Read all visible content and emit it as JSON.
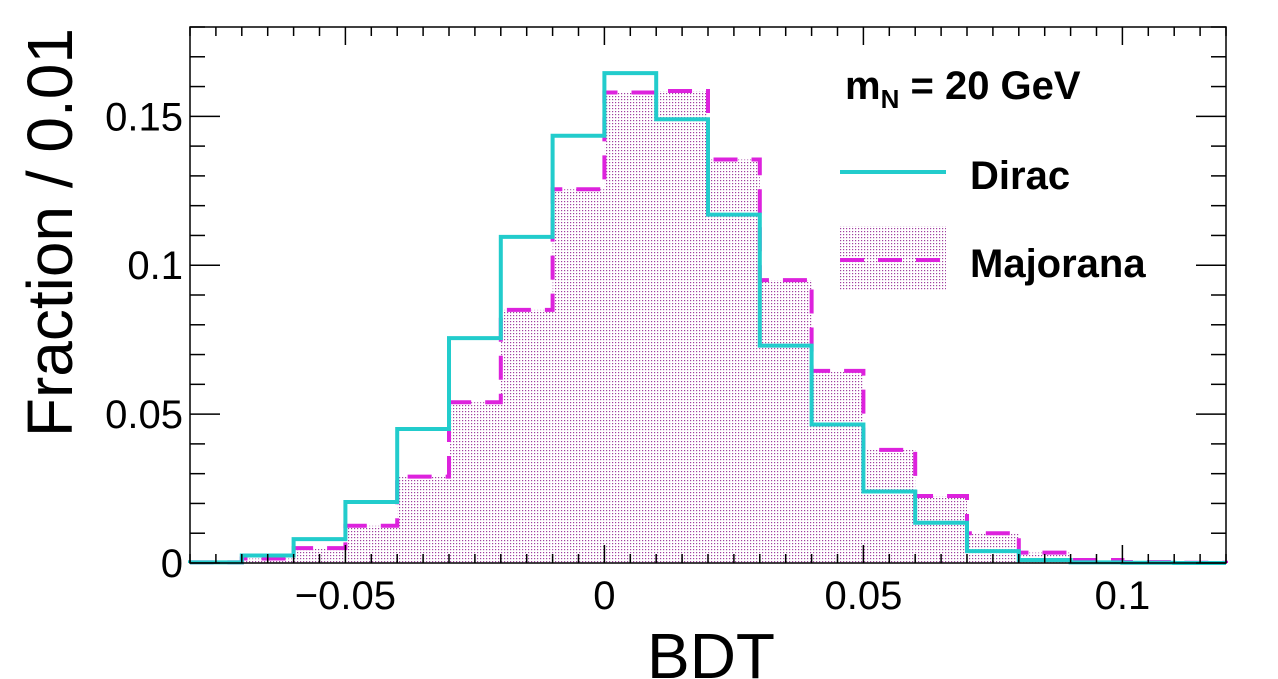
{
  "chart_data": {
    "type": "histogram",
    "xlabel": "BDT",
    "ylabel": "Fraction / 0.01",
    "xlim": [
      -0.08,
      0.12
    ],
    "ylim": [
      0,
      0.18
    ],
    "x_ticks": [
      -0.05,
      0,
      0.05,
      0.1
    ],
    "x_tick_labels": [
      "−0.05",
      "0",
      "0.05",
      "0.1"
    ],
    "y_ticks": [
      0,
      0.05,
      0.1,
      0.15
    ],
    "y_tick_labels": [
      "0",
      "0.05",
      "0.1",
      "0.15"
    ],
    "bin_edges": [
      -0.08,
      -0.07,
      -0.06,
      -0.05,
      -0.04,
      -0.03,
      -0.02,
      -0.01,
      0.0,
      0.01,
      0.02,
      0.03,
      0.04,
      0.05,
      0.06,
      0.07,
      0.08,
      0.09,
      0.1,
      0.11,
      0.12
    ],
    "series": [
      {
        "name": "Dirac",
        "style": "solid",
        "color": "#22cccc",
        "values": [
          0.0002,
          0.0025,
          0.008,
          0.0205,
          0.045,
          0.0755,
          0.1095,
          0.1435,
          0.1645,
          0.149,
          0.117,
          0.073,
          0.0465,
          0.024,
          0.0135,
          0.004,
          0.001,
          0.0002,
          0.0001,
          0.0
        ]
      },
      {
        "name": "Majorana",
        "style": "dashed-filled",
        "color": "#dd22dd",
        "values": [
          0.0002,
          0.0015,
          0.005,
          0.0125,
          0.029,
          0.054,
          0.085,
          0.1255,
          0.158,
          0.1585,
          0.1355,
          0.095,
          0.0645,
          0.038,
          0.0225,
          0.01,
          0.0035,
          0.001,
          0.0003,
          0.0001
        ]
      }
    ],
    "annotation": {
      "main": "m",
      "sub": "N",
      "rest": " = 20 GeV"
    },
    "legend_position": "top-right",
    "grid": false
  }
}
